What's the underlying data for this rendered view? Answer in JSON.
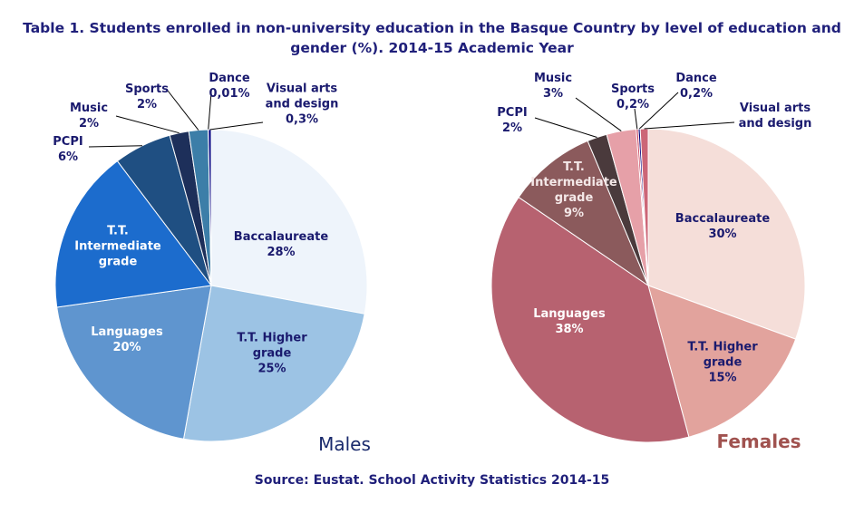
{
  "title": "Table 1. Students enrolled in non-university  education in the Basque Country by level of education and gender (%). 2014-15 Academic Year",
  "source": "Source: Eustat. School Activity Statistics 2014-15",
  "chart_data": [
    {
      "type": "pie",
      "title": "Males",
      "categories": [
        "Baccalaureate",
        "T.T. Higher grade",
        "Languages",
        "T.T. Intermediate grade",
        "PCPI",
        "Music",
        "Sports",
        "Dance",
        "Visual arts and design"
      ],
      "values": [
        28,
        25,
        20,
        17,
        6,
        2,
        2,
        0.01,
        0.3
      ],
      "value_labels": [
        "28%",
        "25%",
        "20%",
        null,
        "6%",
        "2%",
        "2%",
        "0,01%",
        "0,3%"
      ],
      "colors": [
        "#eef4fb",
        "#9cc3e4",
        "#5f95cf",
        "#1c6ccd",
        "#1f4f82",
        "#1d2f5a",
        "#3c7ea8",
        "#0d2b5e",
        "#000080"
      ]
    },
    {
      "type": "pie",
      "title": "Females",
      "categories": [
        "Baccalaureate",
        "T.T. Higher grade",
        "Languages",
        "T.T. Intermediate grade",
        "PCPI",
        "Music",
        "Sports",
        "Dance",
        "Visual arts and design"
      ],
      "values": [
        30,
        15,
        38,
        9,
        2,
        3,
        0.2,
        0.2,
        0.8
      ],
      "value_labels": [
        "30%",
        "15%",
        "38%",
        "9%",
        "2%",
        "3%",
        "0,2%",
        "0,2%",
        null
      ],
      "colors": [
        "#f5ded9",
        "#e2a39d",
        "#b76270",
        "#8b5a5c",
        "#4a3a3c",
        "#e6a0a8",
        "#c73a55",
        "#00007a",
        "#cc6677"
      ]
    }
  ]
}
